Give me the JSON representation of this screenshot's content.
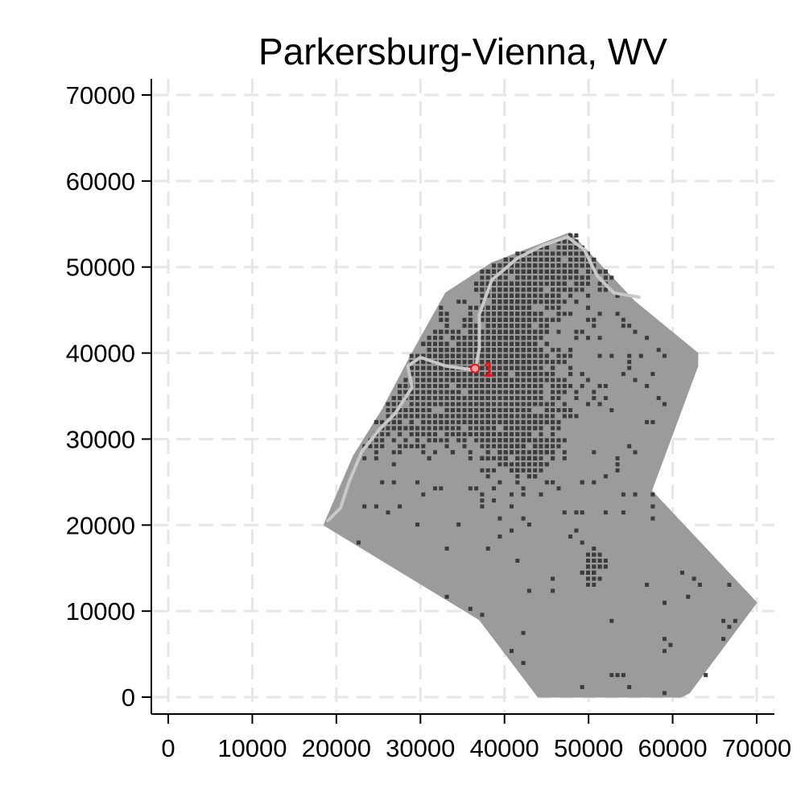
{
  "chart_data": {
    "type": "scatter",
    "title": "Parkersburg-Vienna, WV",
    "xlabel": "",
    "ylabel": "",
    "xlim": [
      -2000,
      72000
    ],
    "ylim": [
      -2000,
      72000
    ],
    "x_ticks": [
      0,
      10000,
      20000,
      30000,
      40000,
      50000,
      60000,
      70000
    ],
    "y_ticks": [
      0,
      10000,
      20000,
      30000,
      40000,
      50000,
      60000,
      70000
    ],
    "grid": true,
    "colors": {
      "region_fill": "#9b9b9b",
      "dense_points": "#3c3c3c",
      "river": "#c8c8c8",
      "center_marker": "#e8141b",
      "grid": "#e6e6e6"
    },
    "region_boundary": [
      [
        33000,
        47000
      ],
      [
        38500,
        50500
      ],
      [
        47800,
        54000
      ],
      [
        55500,
        46000
      ],
      [
        63000,
        40000
      ],
      [
        63000,
        38500
      ],
      [
        57500,
        24000
      ],
      [
        70000,
        11000
      ],
      [
        62000,
        500
      ],
      [
        61000,
        0
      ],
      [
        44000,
        0
      ],
      [
        37000,
        9000
      ],
      [
        18500,
        20000
      ],
      [
        22000,
        28000
      ],
      [
        25500,
        33500
      ],
      [
        29000,
        40000
      ]
    ],
    "river_path": [
      [
        19000,
        20500
      ],
      [
        20500,
        22000
      ],
      [
        21500,
        25000
      ],
      [
        23000,
        28500
      ],
      [
        25000,
        31000
      ],
      [
        27000,
        33000
      ],
      [
        29000,
        36000
      ],
      [
        28500,
        38500
      ],
      [
        30000,
        39500
      ],
      [
        33000,
        38500
      ],
      [
        36500,
        38000
      ],
      [
        37000,
        40500
      ],
      [
        37000,
        44500
      ],
      [
        38500,
        48500
      ],
      [
        41500,
        51000
      ],
      [
        44500,
        52500
      ],
      [
        47500,
        53500
      ],
      [
        49500,
        52000
      ],
      [
        51000,
        49000
      ],
      [
        53000,
        47000
      ],
      [
        56000,
        46500
      ]
    ],
    "annotations": [
      {
        "label": "1",
        "x": 36500,
        "y": 38200
      }
    ]
  }
}
